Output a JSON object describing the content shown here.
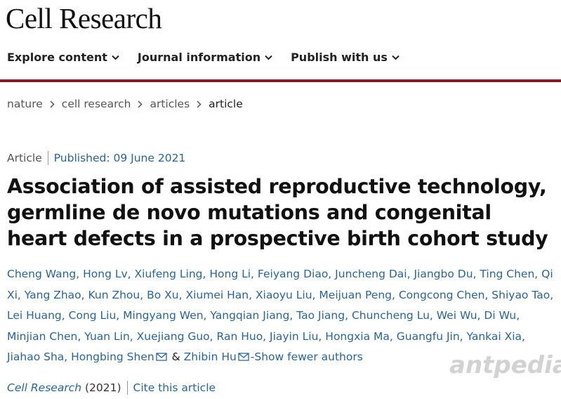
{
  "header": {
    "journal": "Cell Research"
  },
  "nav": [
    "Explore content",
    "Journal information",
    "Publish with us"
  ],
  "breadcrumbs": [
    "nature",
    "cell research",
    "articles",
    "article"
  ],
  "article": {
    "type": "Article",
    "published": "Published: 09 June 2021",
    "title": "Association of assisted reproductive technology, germline de novo mutations and congenital heart defects in a prospective birth cohort study",
    "authors": [
      "Cheng Wang,",
      "Hong Lv,",
      "Xiufeng Ling,",
      "Hong Li,",
      "Feiyang Diao,",
      "Juncheng Dai,",
      "Jiangbo Du,",
      "Ting Chen,",
      "Qi Xi,",
      "Yang Zhao,",
      "Kun Zhou,",
      "Bo Xu,",
      "Xiumei Han,",
      "Xiaoyu Liu,",
      "Meijuan Peng,",
      "Congcong Chen,",
      "Shiyao Tao,",
      "Lei Huang,",
      "Cong Liu,",
      "Mingyang Wen,",
      "Yangqian Jiang,",
      "Tao Jiang,",
      "Chuncheng Lu,",
      "Wei Wu,",
      "Di Wu,",
      "Minjian Chen,",
      "Yuan Lin,",
      "Xuejiang Guo,",
      "Ran Huo,",
      "Jiayin Liu,",
      "Hongxia Ma,",
      "Guangfu Jin,",
      "Yankai Xia,",
      "Jiahao Sha,",
      "Hongbing Shen"
    ],
    "conjunction": "&",
    "last_author": "Zhibin Hu",
    "toggle": "-Show fewer authors",
    "citation": {
      "journal": "Cell Research",
      "year": "(2021)",
      "cite": "Cite this article"
    }
  },
  "watermark": "antpedia"
}
